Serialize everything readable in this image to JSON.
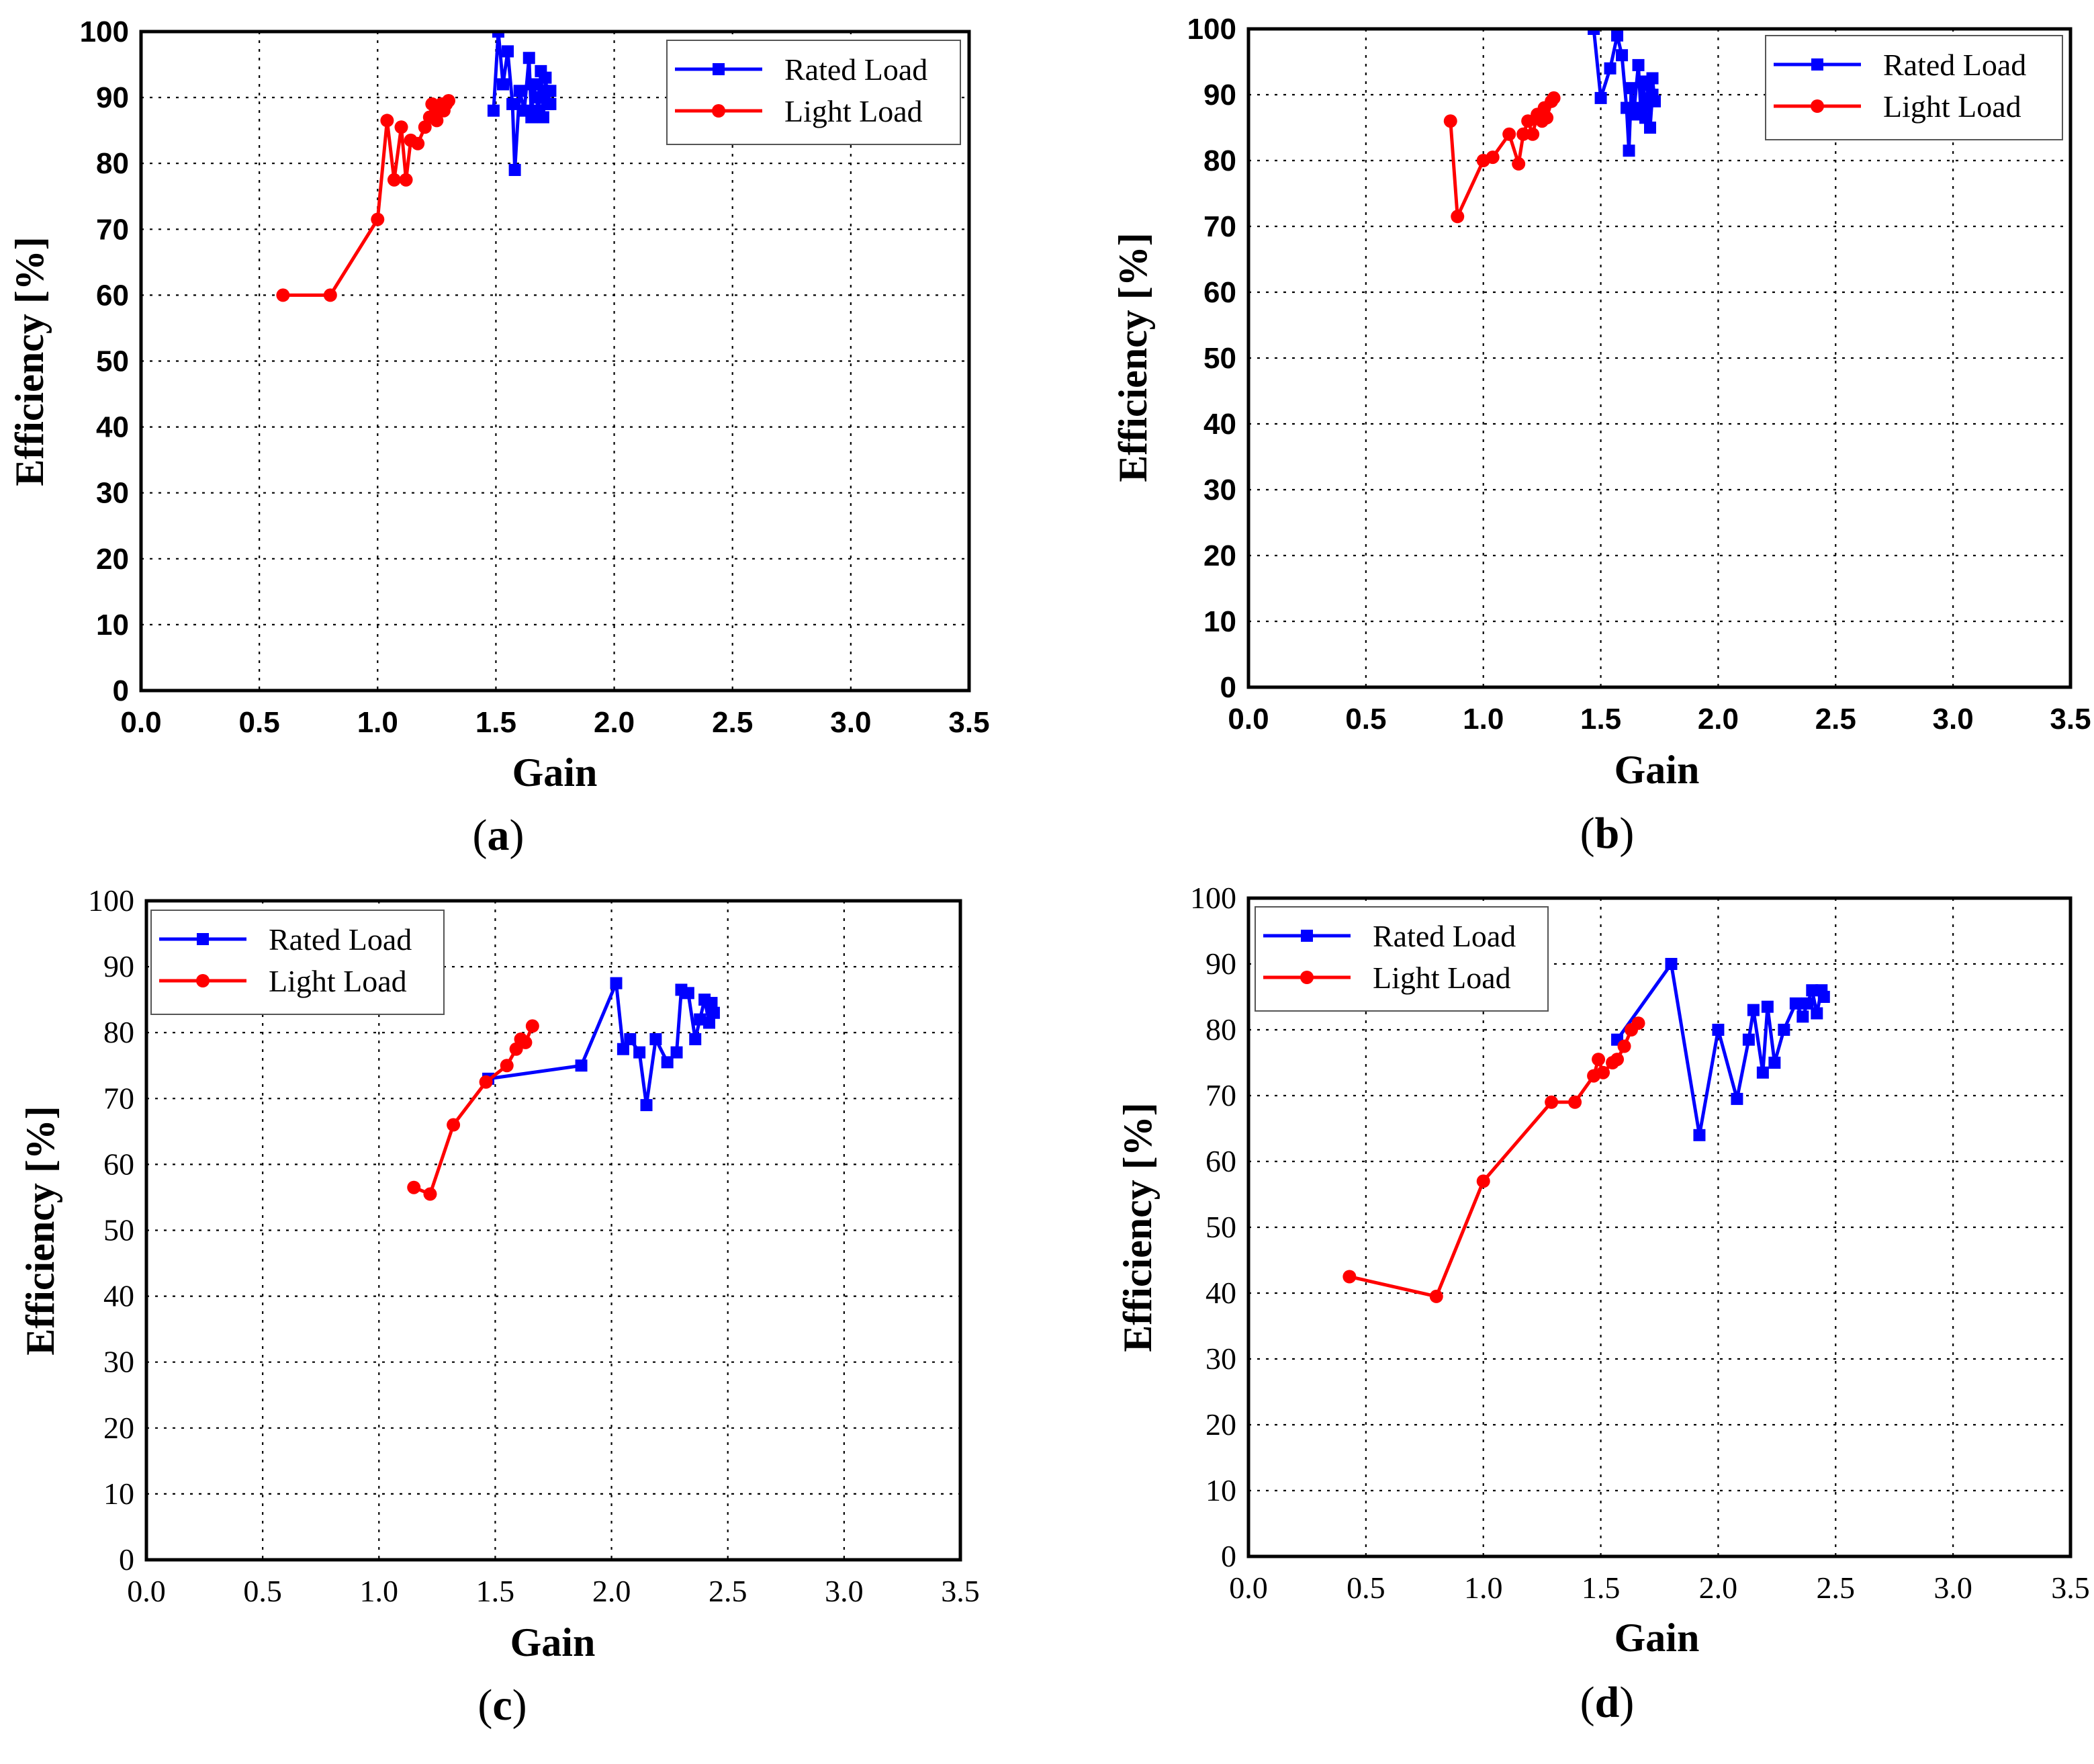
{
  "figure": {
    "colors": {
      "rated": "#0000ff",
      "light": "#ff0000"
    }
  },
  "chart_data": [
    {
      "panel_label": "a",
      "type": "line",
      "xlabel": "Gain",
      "ylabel": "Efficiency [%]",
      "xlim": [
        0,
        3.5
      ],
      "ylim": [
        0,
        100
      ],
      "x_ticks": [
        "0.0",
        "0.5",
        "1.0",
        "1.5",
        "2.0",
        "2.5",
        "3.0",
        "3.5"
      ],
      "y_ticks": [
        "0",
        "10",
        "20",
        "30",
        "40",
        "50",
        "60",
        "70",
        "80",
        "90",
        "100"
      ],
      "grid": true,
      "legend_position": "top-right",
      "series": [
        {
          "name": "Rated Load",
          "marker": "square",
          "points": [
            [
              1.49,
              88
            ],
            [
              1.51,
              100
            ],
            [
              1.53,
              92
            ],
            [
              1.55,
              97
            ],
            [
              1.57,
              89
            ],
            [
              1.58,
              79
            ],
            [
              1.6,
              91
            ],
            [
              1.62,
              88
            ],
            [
              1.64,
              96
            ],
            [
              1.65,
              87
            ],
            [
              1.66,
              92
            ],
            [
              1.68,
              88
            ],
            [
              1.69,
              94
            ],
            [
              1.7,
              87
            ],
            [
              1.71,
              93
            ],
            [
              1.72,
              89
            ],
            [
              1.73,
              91
            ],
            [
              1.67,
              90
            ],
            [
              1.7,
              91
            ],
            [
              1.73,
              89
            ]
          ]
        },
        {
          "name": "Light Load",
          "marker": "circle",
          "points": [
            [
              0.6,
              60
            ],
            [
              0.8,
              60
            ],
            [
              1.0,
              71.5
            ],
            [
              1.04,
              86.5
            ],
            [
              1.07,
              77.5
            ],
            [
              1.1,
              85.5
            ],
            [
              1.12,
              77.5
            ],
            [
              1.14,
              83.5
            ],
            [
              1.17,
              83
            ],
            [
              1.2,
              85.5
            ],
            [
              1.22,
              87
            ],
            [
              1.23,
              89
            ],
            [
              1.25,
              86.5
            ],
            [
              1.26,
              88
            ],
            [
              1.27,
              89
            ],
            [
              1.28,
              88
            ],
            [
              1.29,
              89
            ],
            [
              1.3,
              89.5
            ]
          ]
        }
      ]
    },
    {
      "panel_label": "b",
      "type": "line",
      "xlabel": "Gain",
      "ylabel": "Efficiency [%]",
      "xlim": [
        0,
        3.5
      ],
      "ylim": [
        0,
        100
      ],
      "x_ticks": [
        "0.0",
        "0.5",
        "1.0",
        "1.5",
        "2.0",
        "2.5",
        "3.0",
        "3.5"
      ],
      "y_ticks": [
        "0",
        "10",
        "20",
        "30",
        "40",
        "50",
        "60",
        "70",
        "80",
        "90",
        "100"
      ],
      "grid": true,
      "legend_position": "top-right",
      "series": [
        {
          "name": "Rated Load",
          "marker": "square",
          "points": [
            [
              1.47,
              100
            ],
            [
              1.5,
              89.5
            ],
            [
              1.54,
              94
            ],
            [
              1.57,
              99
            ],
            [
              1.59,
              96
            ],
            [
              1.61,
              88
            ],
            [
              1.62,
              81.5
            ],
            [
              1.63,
              91
            ],
            [
              1.64,
              87
            ],
            [
              1.66,
              94.5
            ],
            [
              1.67,
              88
            ],
            [
              1.68,
              92
            ],
            [
              1.69,
              86.5
            ],
            [
              1.7,
              91.5
            ],
            [
              1.71,
              85
            ],
            [
              1.72,
              90
            ],
            [
              1.73,
              89
            ],
            [
              1.72,
              92.5
            ]
          ]
        },
        {
          "name": "Light Load",
          "marker": "circle",
          "points": [
            [
              0.86,
              86
            ],
            [
              0.89,
              71.5
            ],
            [
              1.0,
              80
            ],
            [
              1.04,
              80.5
            ],
            [
              1.11,
              84
            ],
            [
              1.15,
              79.5
            ],
            [
              1.17,
              84
            ],
            [
              1.19,
              86
            ],
            [
              1.21,
              84
            ],
            [
              1.23,
              87
            ],
            [
              1.25,
              86
            ],
            [
              1.26,
              88
            ],
            [
              1.27,
              86.5
            ],
            [
              1.29,
              89
            ],
            [
              1.3,
              89.5
            ]
          ]
        }
      ]
    },
    {
      "panel_label": "c",
      "type": "line",
      "xlabel": "Gain",
      "ylabel": "Efficiency [%]",
      "xlim": [
        0,
        3.5
      ],
      "ylim": [
        0,
        100
      ],
      "x_ticks": [
        "0.0",
        "0.5",
        "1.0",
        "1.5",
        "2.0",
        "2.5",
        "3.0",
        "3.5"
      ],
      "y_ticks": [
        "0",
        "10",
        "20",
        "30",
        "40",
        "50",
        "60",
        "70",
        "80",
        "90",
        "100"
      ],
      "grid": true,
      "legend_position": "top-left",
      "series": [
        {
          "name": "Rated Load",
          "marker": "square",
          "points": [
            [
              1.47,
              73
            ],
            [
              1.87,
              75
            ],
            [
              2.02,
              87.5
            ],
            [
              2.05,
              77.5
            ],
            [
              2.08,
              79
            ],
            [
              2.12,
              77
            ],
            [
              2.15,
              69
            ],
            [
              2.19,
              79
            ],
            [
              2.24,
              75.5
            ],
            [
              2.28,
              77
            ],
            [
              2.3,
              86.5
            ],
            [
              2.33,
              86
            ],
            [
              2.36,
              79
            ],
            [
              2.38,
              82
            ],
            [
              2.4,
              85
            ],
            [
              2.42,
              81.5
            ],
            [
              2.43,
              84.5
            ],
            [
              2.44,
              83
            ]
          ]
        },
        {
          "name": "Light Load",
          "marker": "circle",
          "points": [
            [
              1.15,
              56.5
            ],
            [
              1.22,
              55.5
            ],
            [
              1.32,
              66
            ],
            [
              1.46,
              72.5
            ],
            [
              1.55,
              75
            ],
            [
              1.59,
              77.5
            ],
            [
              1.61,
              79
            ],
            [
              1.63,
              78.5
            ],
            [
              1.66,
              81
            ]
          ]
        }
      ]
    },
    {
      "panel_label": "d",
      "type": "line",
      "xlabel": "Gain",
      "ylabel": "Efficiency [%]",
      "xlim": [
        0,
        3.5
      ],
      "ylim": [
        0,
        100
      ],
      "x_ticks": [
        "0.0",
        "0.5",
        "1.0",
        "1.5",
        "2.0",
        "2.5",
        "3.0",
        "3.5"
      ],
      "y_ticks": [
        "0",
        "10",
        "20",
        "30",
        "40",
        "50",
        "60",
        "70",
        "80",
        "90",
        "100"
      ],
      "grid": true,
      "legend_position": "top-left",
      "series": [
        {
          "name": "Rated Load",
          "marker": "square",
          "points": [
            [
              1.57,
              78.5
            ],
            [
              1.8,
              90
            ],
            [
              1.92,
              64
            ],
            [
              2.0,
              80
            ],
            [
              2.08,
              69.5
            ],
            [
              2.13,
              78.5
            ],
            [
              2.15,
              83
            ],
            [
              2.19,
              73.5
            ],
            [
              2.21,
              83.5
            ],
            [
              2.24,
              75
            ],
            [
              2.28,
              80
            ],
            [
              2.33,
              84
            ],
            [
              2.36,
              82
            ],
            [
              2.38,
              84
            ],
            [
              2.4,
              86
            ],
            [
              2.42,
              82.5
            ],
            [
              2.44,
              86
            ],
            [
              2.45,
              85
            ]
          ]
        },
        {
          "name": "Light Load",
          "marker": "circle",
          "points": [
            [
              0.43,
              42.5
            ],
            [
              0.8,
              39.5
            ],
            [
              1.0,
              57
            ],
            [
              1.29,
              69
            ],
            [
              1.39,
              69
            ],
            [
              1.47,
              73
            ],
            [
              1.49,
              75.5
            ],
            [
              1.51,
              73.5
            ],
            [
              1.55,
              75
            ],
            [
              1.57,
              75.5
            ],
            [
              1.6,
              77.5
            ],
            [
              1.63,
              80
            ],
            [
              1.66,
              81
            ]
          ]
        }
      ]
    }
  ]
}
